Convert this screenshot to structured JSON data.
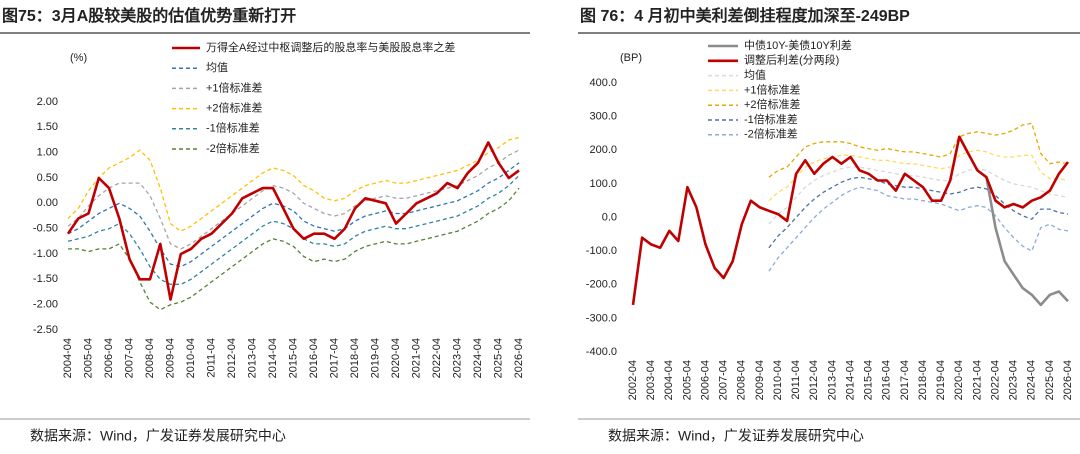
{
  "chart_data": [
    {
      "type": "line",
      "title": "图75：3月A股较美股的估值优势重新打开",
      "unit": "(%)",
      "source": "数据来源：Wind，广发证券发展研究中心",
      "x": [
        "2004-04",
        "2004-10",
        "2005-04",
        "2005-10",
        "2006-04",
        "2006-10",
        "2007-04",
        "2007-10",
        "2008-04",
        "2008-10",
        "2009-04",
        "2009-10",
        "2010-04",
        "2010-10",
        "2011-04",
        "2011-10",
        "2012-04",
        "2012-10",
        "2013-04",
        "2013-10",
        "2014-04",
        "2014-10",
        "2015-04",
        "2015-10",
        "2016-04",
        "2016-10",
        "2017-04",
        "2017-10",
        "2018-04",
        "2018-10",
        "2019-04",
        "2019-10",
        "2020-04",
        "2020-10",
        "2021-04",
        "2021-10",
        "2022-04",
        "2022-10",
        "2023-04",
        "2023-10",
        "2024-04",
        "2024-10",
        "2025-04",
        "2025-10",
        "2026-04"
      ],
      "xticks": [
        "2004-04",
        "2005-04",
        "2006-04",
        "2007-04",
        "2008-04",
        "2009-04",
        "2010-04",
        "2011-04",
        "2012-04",
        "2013-04",
        "2014-04",
        "2015-04",
        "2016-04",
        "2017-04",
        "2018-04",
        "2019-04",
        "2020-04",
        "2021-04",
        "2022-04",
        "2023-04",
        "2024-04",
        "2025-04",
        "2026-04"
      ],
      "ylim": [
        -2.5,
        2.0
      ],
      "yticks": [
        {
          "value": -2.5,
          "label": "-2.50"
        },
        {
          "value": -2,
          "label": "-2.00"
        },
        {
          "value": -1.5,
          "label": "-1.50"
        },
        {
          "value": -1,
          "label": "-1.00"
        },
        {
          "value": -0.5,
          "label": "-0.50"
        },
        {
          "value": 0,
          "label": "0.00"
        },
        {
          "value": 0.5,
          "label": "0.50"
        },
        {
          "value": 1,
          "label": "1.00"
        },
        {
          "value": 1.5,
          "label": "1.50"
        },
        {
          "value": 2,
          "label": "2.00"
        }
      ],
      "series": [
        {
          "name": "万得全A经过中枢调整后的股息率与美股股息率之差",
          "color": "#c00000",
          "dashed": false,
          "values": [
            -0.6,
            -0.3,
            -0.2,
            0.5,
            0.3,
            -0.3,
            -1.1,
            -1.5,
            -1.5,
            -0.8,
            -1.9,
            -1.0,
            -0.9,
            -0.7,
            -0.6,
            -0.4,
            -0.2,
            0.1,
            0.2,
            0.3,
            0.3,
            -0.1,
            -0.5,
            -0.7,
            -0.6,
            -0.6,
            -0.7,
            -0.5,
            -0.1,
            0.1,
            0.05,
            0.0,
            -0.4,
            -0.2,
            0.0,
            0.1,
            0.2,
            0.4,
            0.3,
            0.6,
            0.8,
            1.2,
            0.8,
            0.5,
            0.65
          ]
        },
        {
          "name": "均值",
          "color": "#2e75b6",
          "dashed": true,
          "values": [
            -0.6,
            -0.5,
            -0.35,
            -0.2,
            -0.1,
            0.0,
            -0.1,
            -0.25,
            -0.55,
            -0.9,
            -1.2,
            -1.25,
            -1.15,
            -1.0,
            -0.85,
            -0.7,
            -0.55,
            -0.4,
            -0.25,
            -0.1,
            0.0,
            -0.05,
            -0.15,
            -0.35,
            -0.45,
            -0.5,
            -0.55,
            -0.5,
            -0.35,
            -0.25,
            -0.2,
            -0.15,
            -0.2,
            -0.2,
            -0.15,
            -0.1,
            -0.05,
            0.0,
            0.05,
            0.15,
            0.25,
            0.4,
            0.5,
            0.65,
            0.8
          ]
        },
        {
          "name": "+1倍标准差",
          "color": "#a6a6a6",
          "dashed": true,
          "values": [
            -0.45,
            -0.3,
            -0.05,
            0.15,
            0.3,
            0.4,
            0.4,
            0.4,
            0.15,
            -0.3,
            -0.8,
            -0.9,
            -0.8,
            -0.65,
            -0.5,
            -0.35,
            -0.2,
            -0.05,
            0.1,
            0.25,
            0.35,
            0.3,
            0.2,
            0.0,
            -0.1,
            -0.2,
            -0.25,
            -0.2,
            -0.05,
            0.05,
            0.1,
            0.15,
            0.1,
            0.1,
            0.15,
            0.2,
            0.25,
            0.3,
            0.35,
            0.45,
            0.55,
            0.7,
            0.8,
            0.95,
            1.05
          ]
        },
        {
          "name": "+2倍标准差",
          "color": "#ffc000",
          "dashed": true,
          "values": [
            -0.3,
            -0.1,
            0.25,
            0.5,
            0.7,
            0.8,
            0.9,
            1.05,
            0.85,
            0.3,
            -0.4,
            -0.55,
            -0.45,
            -0.3,
            -0.15,
            0.0,
            0.15,
            0.3,
            0.45,
            0.6,
            0.7,
            0.65,
            0.55,
            0.35,
            0.25,
            0.1,
            0.05,
            0.1,
            0.25,
            0.35,
            0.4,
            0.45,
            0.4,
            0.4,
            0.45,
            0.5,
            0.55,
            0.6,
            0.65,
            0.75,
            0.85,
            1.0,
            1.1,
            1.25,
            1.3
          ]
        },
        {
          "name": "-1倍标准差",
          "color": "#31859c",
          "dashed": true,
          "values": [
            -0.75,
            -0.7,
            -0.65,
            -0.55,
            -0.5,
            -0.4,
            -0.6,
            -0.9,
            -1.25,
            -1.5,
            -1.6,
            -1.6,
            -1.5,
            -1.35,
            -1.2,
            -1.05,
            -0.9,
            -0.75,
            -0.6,
            -0.45,
            -0.35,
            -0.4,
            -0.5,
            -0.7,
            -0.8,
            -0.8,
            -0.85,
            -0.8,
            -0.65,
            -0.55,
            -0.5,
            -0.45,
            -0.5,
            -0.5,
            -0.45,
            -0.4,
            -0.35,
            -0.3,
            -0.25,
            -0.15,
            -0.05,
            0.1,
            0.2,
            0.35,
            0.55
          ]
        },
        {
          "name": "-2倍标准差",
          "color": "#548235",
          "dashed": true,
          "values": [
            -0.9,
            -0.9,
            -0.95,
            -0.9,
            -0.9,
            -0.8,
            -1.1,
            -1.55,
            -1.95,
            -2.1,
            -2.0,
            -1.95,
            -1.85,
            -1.7,
            -1.55,
            -1.4,
            -1.25,
            -1.1,
            -0.95,
            -0.8,
            -0.7,
            -0.75,
            -0.85,
            -1.05,
            -1.15,
            -1.1,
            -1.15,
            -1.1,
            -0.95,
            -0.85,
            -0.8,
            -0.75,
            -0.8,
            -0.8,
            -0.75,
            -0.7,
            -0.65,
            -0.6,
            -0.55,
            -0.45,
            -0.35,
            -0.2,
            -0.1,
            0.05,
            0.3
          ]
        }
      ]
    },
    {
      "type": "line",
      "title": "图 76：4 月初中美利差倒挂程度加深至-249BP",
      "unit": "(BP)",
      "source": "数据来源：Wind，广发证券发展研究中心",
      "x": [
        "2002-04",
        "2002-10",
        "2003-04",
        "2003-10",
        "2004-04",
        "2004-10",
        "2005-04",
        "2005-10",
        "2006-04",
        "2006-10",
        "2007-04",
        "2007-10",
        "2008-04",
        "2008-10",
        "2009-04",
        "2009-10",
        "2010-04",
        "2010-10",
        "2011-04",
        "2011-10",
        "2012-04",
        "2012-10",
        "2013-04",
        "2013-10",
        "2014-04",
        "2014-10",
        "2015-04",
        "2015-10",
        "2016-04",
        "2016-10",
        "2017-04",
        "2017-10",
        "2018-04",
        "2018-10",
        "2019-04",
        "2019-10",
        "2020-04",
        "2020-10",
        "2021-04",
        "2021-10",
        "2022-04",
        "2022-10",
        "2023-04",
        "2023-10",
        "2024-04",
        "2024-10",
        "2025-04",
        "2025-10",
        "2026-04"
      ],
      "xticks": [
        "2002-04",
        "2003-04",
        "2004-04",
        "2005-04",
        "2006-04",
        "2007-04",
        "2008-04",
        "2009-04",
        "2010-04",
        "2011-04",
        "2012-04",
        "2013-04",
        "2014-04",
        "2015-04",
        "2016-04",
        "2017-04",
        "2018-04",
        "2019-04",
        "2020-04",
        "2021-04",
        "2022-04",
        "2023-04",
        "2024-04",
        "2025-04",
        "2026-04"
      ],
      "ylim": [
        -400,
        400
      ],
      "yticks": [
        {
          "value": -400,
          "label": "-400.0"
        },
        {
          "value": -300,
          "label": "-300.0"
        },
        {
          "value": -200,
          "label": "-200.0"
        },
        {
          "value": -100,
          "label": "-100.0"
        },
        {
          "value": 0,
          "label": "0.0"
        },
        {
          "value": 100,
          "label": "100.0"
        },
        {
          "value": 200,
          "label": "200.0"
        },
        {
          "value": 300,
          "label": "300.0"
        },
        {
          "value": 400,
          "label": "400.0"
        }
      ],
      "series": [
        {
          "name": "中债10Y-美债10Y利差",
          "color": "#8c8c8c",
          "dashed": false,
          "values": [
            null,
            null,
            null,
            null,
            null,
            null,
            null,
            null,
            null,
            null,
            null,
            null,
            null,
            null,
            null,
            null,
            null,
            null,
            null,
            null,
            null,
            null,
            null,
            null,
            null,
            null,
            null,
            null,
            null,
            null,
            null,
            null,
            null,
            null,
            null,
            null,
            null,
            null,
            null,
            120,
            -30,
            -130,
            -170,
            -210,
            -230,
            -260,
            -230,
            -220,
            -249
          ]
        },
        {
          "name": "调整后利差(分两段)",
          "color": "#c00000",
          "dashed": false,
          "values": [
            -260,
            -60,
            -80,
            -90,
            -40,
            -70,
            90,
            30,
            -80,
            -150,
            -180,
            -130,
            -20,
            50,
            30,
            20,
            10,
            -10,
            130,
            170,
            130,
            160,
            180,
            160,
            180,
            140,
            130,
            110,
            110,
            80,
            130,
            110,
            90,
            50,
            50,
            110,
            240,
            190,
            140,
            120,
            50,
            30,
            40,
            30,
            50,
            60,
            80,
            130,
            165
          ]
        },
        {
          "name": "均值",
          "color": "#d9d9d9",
          "dashed": true,
          "values": [
            null,
            null,
            null,
            null,
            null,
            null,
            null,
            null,
            null,
            null,
            null,
            null,
            null,
            null,
            null,
            -20,
            10,
            30,
            60,
            90,
            110,
            125,
            135,
            145,
            150,
            150,
            145,
            140,
            135,
            130,
            125,
            125,
            120,
            115,
            110,
            110,
            130,
            140,
            145,
            140,
            125,
            110,
            100,
            95,
            90,
            80,
            70,
            65,
            60
          ]
        },
        {
          "name": "+1倍标准差",
          "color": "#ffd966",
          "dashed": true,
          "values": [
            null,
            null,
            null,
            null,
            null,
            null,
            null,
            null,
            null,
            null,
            null,
            null,
            null,
            null,
            null,
            50,
            75,
            90,
            120,
            150,
            165,
            175,
            180,
            185,
            185,
            180,
            175,
            170,
            170,
            165,
            160,
            160,
            155,
            150,
            145,
            150,
            185,
            195,
            200,
            195,
            185,
            180,
            180,
            185,
            185,
            135,
            115,
            115,
            110
          ]
        },
        {
          "name": "+2倍标准差",
          "color": "#e6a800",
          "dashed": true,
          "values": [
            null,
            null,
            null,
            null,
            null,
            null,
            null,
            null,
            null,
            null,
            null,
            null,
            null,
            null,
            null,
            120,
            140,
            150,
            180,
            210,
            220,
            225,
            225,
            225,
            220,
            210,
            205,
            200,
            205,
            200,
            195,
            195,
            190,
            185,
            180,
            190,
            240,
            250,
            255,
            250,
            245,
            250,
            260,
            275,
            280,
            190,
            160,
            165,
            160
          ]
        },
        {
          "name": "-1倍标准差",
          "color": "#4a72a8",
          "dashed": true,
          "values": [
            null,
            null,
            null,
            null,
            null,
            null,
            null,
            null,
            null,
            null,
            null,
            null,
            null,
            null,
            null,
            -90,
            -55,
            -30,
            0,
            30,
            55,
            75,
            90,
            105,
            115,
            120,
            115,
            110,
            100,
            95,
            90,
            90,
            85,
            80,
            75,
            70,
            75,
            85,
            90,
            85,
            65,
            40,
            20,
            5,
            -5,
            25,
            25,
            15,
            10
          ]
        },
        {
          "name": "-2倍标准差",
          "color": "#8ea9db",
          "dashed": true,
          "values": [
            null,
            null,
            null,
            null,
            null,
            null,
            null,
            null,
            null,
            null,
            null,
            null,
            null,
            null,
            null,
            -160,
            -120,
            -90,
            -60,
            -30,
            0,
            25,
            45,
            65,
            80,
            90,
            85,
            80,
            65,
            60,
            55,
            55,
            50,
            45,
            40,
            30,
            20,
            30,
            35,
            30,
            5,
            -30,
            -60,
            -85,
            -100,
            -30,
            -20,
            -35,
            -40
          ]
        }
      ]
    }
  ]
}
